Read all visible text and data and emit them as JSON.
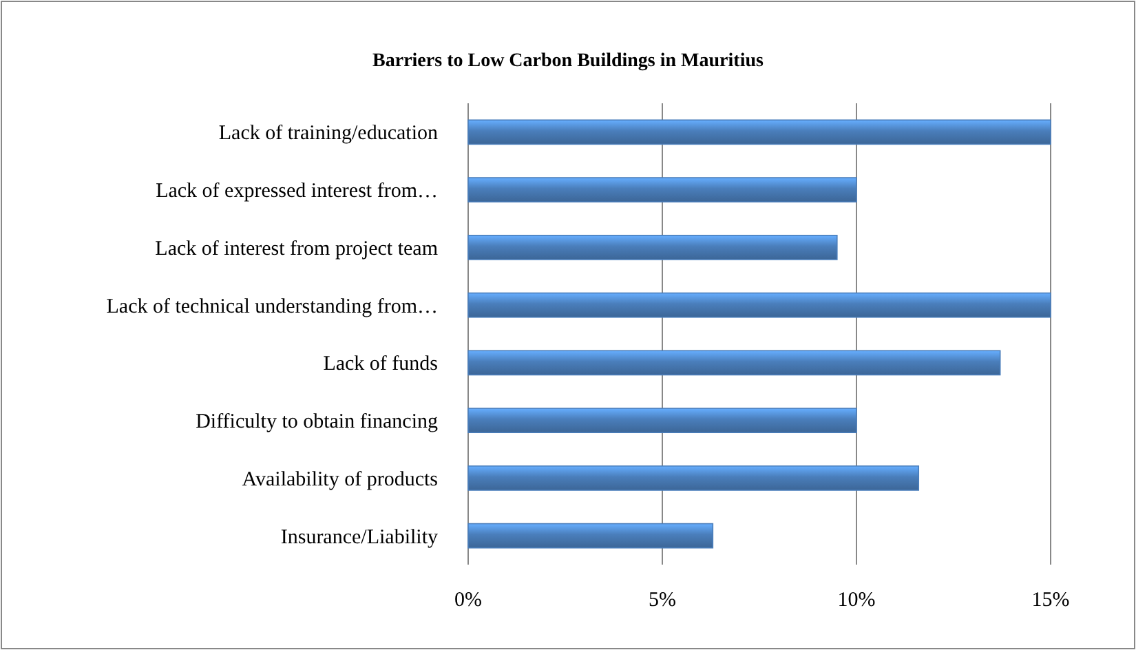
{
  "chart_data": {
    "type": "bar",
    "orientation": "horizontal",
    "title": "Barriers to Low Carbon Buildings in Mauritius",
    "categories": [
      "Lack of training/education",
      "Lack of expressed interest from…",
      "Lack of interest from project team",
      "Lack of technical understanding from…",
      "Lack of funds",
      "Difficulty to obtain financing",
      "Availability of products",
      "Insurance/Liability"
    ],
    "values": [
      15,
      10,
      9.5,
      15,
      13.7,
      10,
      11.6,
      6.3
    ],
    "color": "#4a7ebb",
    "xlim": [
      0,
      15
    ],
    "xticks": [
      {
        "value": 0,
        "label": "0%"
      },
      {
        "value": 5,
        "label": "5%"
      },
      {
        "value": 10,
        "label": "10%"
      },
      {
        "value": 15,
        "label": "15%"
      }
    ],
    "grid": "x"
  }
}
